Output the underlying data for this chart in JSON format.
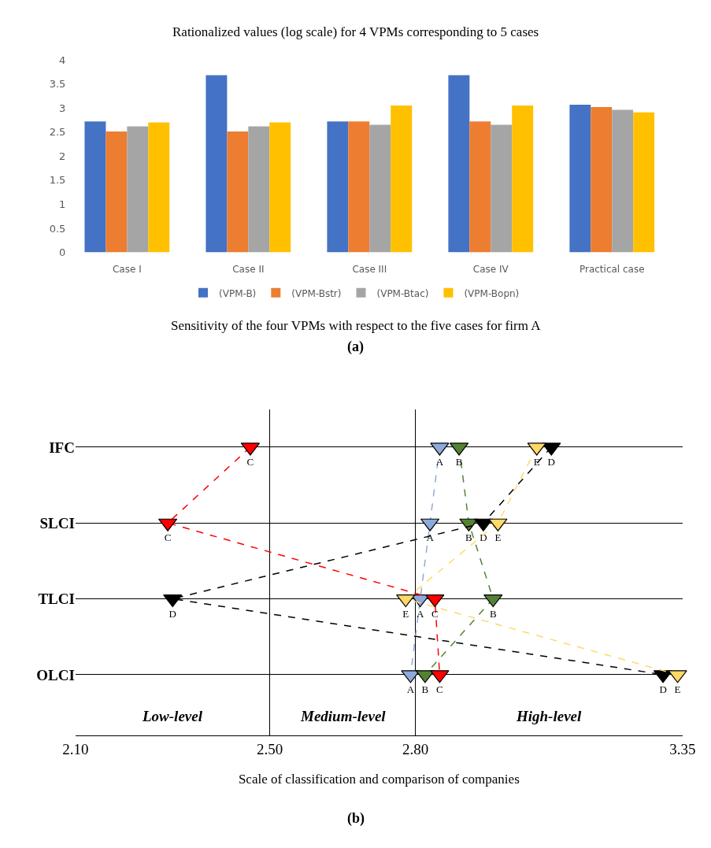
{
  "chart_data": [
    {
      "type": "bar",
      "title": "Rationalized values (log scale) for 4 VPMs corresponding to 5 cases",
      "categories": [
        "Case I",
        "Case II",
        "Case III",
        "Case IV",
        "Practical case"
      ],
      "series": [
        {
          "name": "(VPM-B)",
          "color": "#4472c4",
          "values": [
            2.72,
            3.68,
            2.72,
            3.68,
            3.07
          ]
        },
        {
          "name": "(VPM-Bstr)",
          "color": "#ed7d31",
          "values": [
            2.51,
            2.51,
            2.72,
            2.72,
            3.02
          ]
        },
        {
          "name": "(VPM-Btac)",
          "color": "#a5a5a5",
          "values": [
            2.62,
            2.62,
            2.65,
            2.65,
            2.96
          ]
        },
        {
          "name": "(VPM-Bopn)",
          "color": "#ffc000",
          "values": [
            2.7,
            2.7,
            3.05,
            3.05,
            2.91
          ]
        }
      ],
      "ylim": [
        0,
        4
      ],
      "yticks": [
        0,
        0.5,
        1,
        1.5,
        2,
        2.5,
        3,
        3.5,
        4
      ],
      "grid": false,
      "legend": "bottom",
      "annotations": [
        "Sensitivity of the four VPMs with respect to the five cases for firm A",
        "(a)"
      ]
    },
    {
      "type": "line",
      "orientation": "horizontal",
      "categories": [
        "IFC",
        "SLCI",
        "TLCI",
        "OLCI"
      ],
      "series": [
        {
          "name": "A",
          "color": "#8eaadb",
          "values": [
            2.85,
            2.83,
            2.81,
            2.79
          ]
        },
        {
          "name": "B",
          "color": "#548235",
          "values": [
            2.89,
            2.91,
            2.96,
            2.82
          ]
        },
        {
          "name": "C",
          "color": "#ff0000",
          "values": [
            2.46,
            2.29,
            2.84,
            2.85
          ]
        },
        {
          "name": "D",
          "color": "#000000",
          "values": [
            3.08,
            2.94,
            2.3,
            3.31
          ]
        },
        {
          "name": "E",
          "color": "#ffd966",
          "values": [
            3.05,
            2.97,
            2.78,
            3.34
          ]
        }
      ],
      "xlim": [
        2.1,
        3.35
      ],
      "xticks": [
        {
          "value": 2.1,
          "label": "2.10"
        },
        {
          "value": 2.5,
          "label": "2.50"
        },
        {
          "value": 2.8,
          "label": "2.80"
        },
        {
          "value": 3.35,
          "label": "3.35"
        }
      ],
      "xlabel": "Scale of classification and comparison of companies",
      "marker": "triangle",
      "line_style": "dashed",
      "grid": true,
      "legend": false,
      "annotations": [
        "Low-level",
        "Medium-level",
        "High-level",
        "(b)"
      ]
    }
  ]
}
